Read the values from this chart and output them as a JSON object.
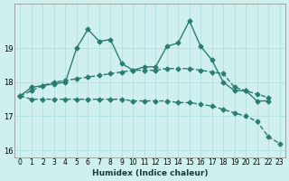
{
  "xlabel": "Humidex (Indice chaleur)",
  "background_color": "#cff0ee",
  "grid_color": "#aadddd",
  "line_color": "#2a7d72",
  "x": [
    0,
    1,
    2,
    3,
    4,
    5,
    6,
    7,
    8,
    9,
    10,
    11,
    12,
    13,
    14,
    15,
    16,
    17,
    18,
    19,
    20,
    21,
    22,
    23
  ],
  "line1": [
    17.6,
    17.85,
    17.9,
    17.95,
    18.0,
    19.0,
    19.55,
    19.2,
    19.25,
    18.55,
    18.35,
    18.45,
    18.45,
    19.05,
    19.15,
    19.8,
    19.05,
    18.65,
    18.0,
    17.75,
    17.75,
    17.45,
    17.45,
    null
  ],
  "line2": [
    17.6,
    17.75,
    17.9,
    18.0,
    18.05,
    18.1,
    18.15,
    18.2,
    18.25,
    18.3,
    18.35,
    18.35,
    18.35,
    18.4,
    18.4,
    18.4,
    18.35,
    18.3,
    18.25,
    17.85,
    17.75,
    17.65,
    17.55,
    null
  ],
  "line3": [
    17.6,
    17.5,
    17.5,
    17.5,
    17.5,
    17.5,
    17.5,
    17.5,
    17.5,
    17.5,
    17.45,
    17.45,
    17.45,
    17.45,
    17.4,
    17.4,
    17.35,
    17.3,
    17.2,
    17.1,
    17.0,
    16.85,
    16.4,
    16.2
  ],
  "ylim": [
    15.8,
    20.3
  ],
  "yticks": [
    16,
    17,
    18,
    19
  ],
  "xticks": [
    0,
    1,
    2,
    3,
    4,
    5,
    6,
    7,
    8,
    9,
    10,
    11,
    12,
    13,
    14,
    15,
    16,
    17,
    18,
    19,
    20,
    21,
    22,
    23
  ]
}
